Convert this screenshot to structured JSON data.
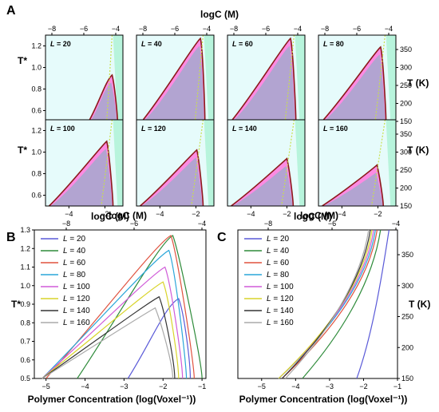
{
  "figure": {
    "panel_labels": [
      "A",
      "B",
      "C"
    ]
  },
  "colors": {
    "bg_region": "#e6fbfb",
    "two_phase": "#ff77dd",
    "overlap": "#aaa6cf",
    "boundary": "#8b1a1a",
    "spinodal": "#c8e04a",
    "right_band": "#99f0c8"
  },
  "chart_data": [
    {
      "id": "A",
      "type": "area",
      "grid": "2x4",
      "xlabel_bottom": "logC (M)",
      "xlabel_top": "logC (M)",
      "ylabel_left": "T*",
      "ylabel_right": "T (K)",
      "top_ticks": [
        -8,
        -6,
        -4
      ],
      "bottom_ticks": [
        -4,
        -2
      ],
      "left_ticks": [
        0.6,
        0.8,
        1.0,
        1.2
      ],
      "right_ticks": [
        150,
        200,
        250,
        300,
        350
      ],
      "xlim": [
        -5.3,
        -1.0
      ],
      "ylim": [
        0.5,
        1.3
      ],
      "panels": [
        {
          "label": "L = 20",
          "label_prefix": "L",
          "label_value": "= 20",
          "peak_x": -1.6,
          "peak_y": 0.93,
          "left_x": -2.9,
          "right_x": -1.3
        },
        {
          "label": "L = 40",
          "label_prefix": "L",
          "label_value": "= 40",
          "peak_x": -1.75,
          "peak_y": 1.27,
          "left_x": -5.0,
          "right_x": -1.5
        },
        {
          "label": "L = 60",
          "label_prefix": "L",
          "label_value": "= 60",
          "peak_x": -1.8,
          "peak_y": 1.27,
          "left_x": -5.1,
          "right_x": -1.5
        },
        {
          "label": "L = 80",
          "label_prefix": "L",
          "label_value": "= 80",
          "peak_x": -1.85,
          "peak_y": 1.19,
          "left_x": -5.1,
          "right_x": -1.55
        },
        {
          "label": "L = 100",
          "label_prefix": "L",
          "label_value": "= 100",
          "peak_x": -1.9,
          "peak_y": 1.1,
          "left_x": -5.1,
          "right_x": -1.55
        },
        {
          "label": "L = 120",
          "label_prefix": "L",
          "label_value": "= 120",
          "peak_x": -1.95,
          "peak_y": 1.02,
          "left_x": -5.1,
          "right_x": -1.6
        },
        {
          "label": "L = 140",
          "label_prefix": "L",
          "label_value": "= 140",
          "peak_x": -2.0,
          "peak_y": 0.94,
          "left_x": -5.1,
          "right_x": -1.65
        },
        {
          "label": "L = 160",
          "label_prefix": "L",
          "label_value": "= 160",
          "peak_x": -2.05,
          "peak_y": 0.88,
          "left_x": -5.1,
          "right_x": -1.7
        }
      ]
    },
    {
      "id": "B",
      "type": "line",
      "xlabel": "Polymer Concentration (log(Voxel⁻¹))",
      "xlabel_top": "logC (M)",
      "ylabel": "T*",
      "xlim": [
        -5.3,
        -0.9
      ],
      "ylim": [
        0.5,
        1.3
      ],
      "x_ticks": [
        -5,
        -4,
        -3,
        -2,
        -1
      ],
      "top_ticks": [
        -8,
        -6,
        -4
      ],
      "y_ticks": [
        0.5,
        0.6,
        0.7,
        0.8,
        0.9,
        1.0,
        1.1,
        1.2,
        1.3
      ],
      "y_tick_labels": [
        "0.5",
        "0.6",
        "0.7",
        "0.8",
        "0.9",
        "1.0",
        "1.1",
        "1.2",
        "1.3"
      ],
      "legend": "top-left",
      "series": [
        {
          "name": "L = 20",
          "prefix": "L",
          "value": "= 20",
          "color": "#5a5ad8",
          "peak_x": -1.6,
          "peak_y": 0.93,
          "left_x": -2.9,
          "right_x": -1.3
        },
        {
          "name": "L = 40",
          "prefix": "L",
          "value": "= 40",
          "color": "#2e8b3a",
          "peak_x": -1.75,
          "peak_y": 1.27,
          "left_x": -4.2,
          "right_x": -1.0
        },
        {
          "name": "L = 60",
          "prefix": "L",
          "value": "= 60",
          "color": "#e0523f",
          "peak_x": -1.8,
          "peak_y": 1.27,
          "left_x": -5.0,
          "right_x": -1.2
        },
        {
          "name": "L = 80",
          "prefix": "L",
          "value": "= 80",
          "color": "#2aa6d9",
          "peak_x": -1.85,
          "peak_y": 1.19,
          "left_x": -5.1,
          "right_x": -1.4
        },
        {
          "name": "L = 100",
          "prefix": "L",
          "value": "= 100",
          "color": "#d05cd8",
          "peak_x": -1.95,
          "peak_y": 1.1,
          "left_x": -5.1,
          "right_x": -1.5
        },
        {
          "name": "L = 120",
          "prefix": "L",
          "value": "= 120",
          "color": "#d9d42a",
          "peak_x": -2.0,
          "peak_y": 1.02,
          "left_x": -5.1,
          "right_x": -1.6
        },
        {
          "name": "L = 140",
          "prefix": "L",
          "value": "= 140",
          "color": "#333333",
          "peak_x": -2.1,
          "peak_y": 0.94,
          "left_x": -5.1,
          "right_x": -1.7
        },
        {
          "name": "L = 160",
          "prefix": "L",
          "value": "= 160",
          "color": "#aaaaaa",
          "peak_x": -2.2,
          "peak_y": 0.88,
          "left_x": -5.1,
          "right_x": -1.75
        }
      ]
    },
    {
      "id": "C",
      "type": "line",
      "xlabel": "Polymer Concentration (log(Voxel⁻¹))",
      "xlabel_top": "logC (M)",
      "ylabel": "T (K)",
      "xlim": [
        -5.7,
        -1.0
      ],
      "ylim": [
        150,
        390
      ],
      "x_ticks": [
        -5,
        -4,
        -3,
        -2,
        -1
      ],
      "top_ticks": [
        -8,
        -6,
        -4
      ],
      "y_ticks": [
        150,
        200,
        250,
        300,
        350
      ],
      "legend": "top-left",
      "series": [
        {
          "name": "L = 20",
          "prefix": "L",
          "value": "= 20",
          "color": "#5a5ad8",
          "x0": -2.2,
          "x1": -1.25
        },
        {
          "name": "L = 40",
          "prefix": "L",
          "value": "= 40",
          "color": "#2e8b3a",
          "x0": -3.8,
          "x1": -1.5
        },
        {
          "name": "L = 60",
          "prefix": "L",
          "value": "= 60",
          "color": "#e0523f",
          "x0": -4.4,
          "x1": -1.6
        },
        {
          "name": "L = 80",
          "prefix": "L",
          "value": "= 80",
          "color": "#2aa6d9",
          "x0": -4.5,
          "x1": -1.65
        },
        {
          "name": "L = 100",
          "prefix": "L",
          "value": "= 100",
          "color": "#d05cd8",
          "x0": -4.5,
          "x1": -1.7
        },
        {
          "name": "L = 120",
          "prefix": "L",
          "value": "= 120",
          "color": "#d9d42a",
          "x0": -4.5,
          "x1": -1.75
        },
        {
          "name": "L = 140",
          "prefix": "L",
          "value": "= 140",
          "color": "#333333",
          "x0": -4.4,
          "x1": -1.8
        },
        {
          "name": "L = 160",
          "prefix": "L",
          "value": "= 160",
          "color": "#aaaaaa",
          "x0": -4.3,
          "x1": -1.85
        }
      ]
    }
  ]
}
